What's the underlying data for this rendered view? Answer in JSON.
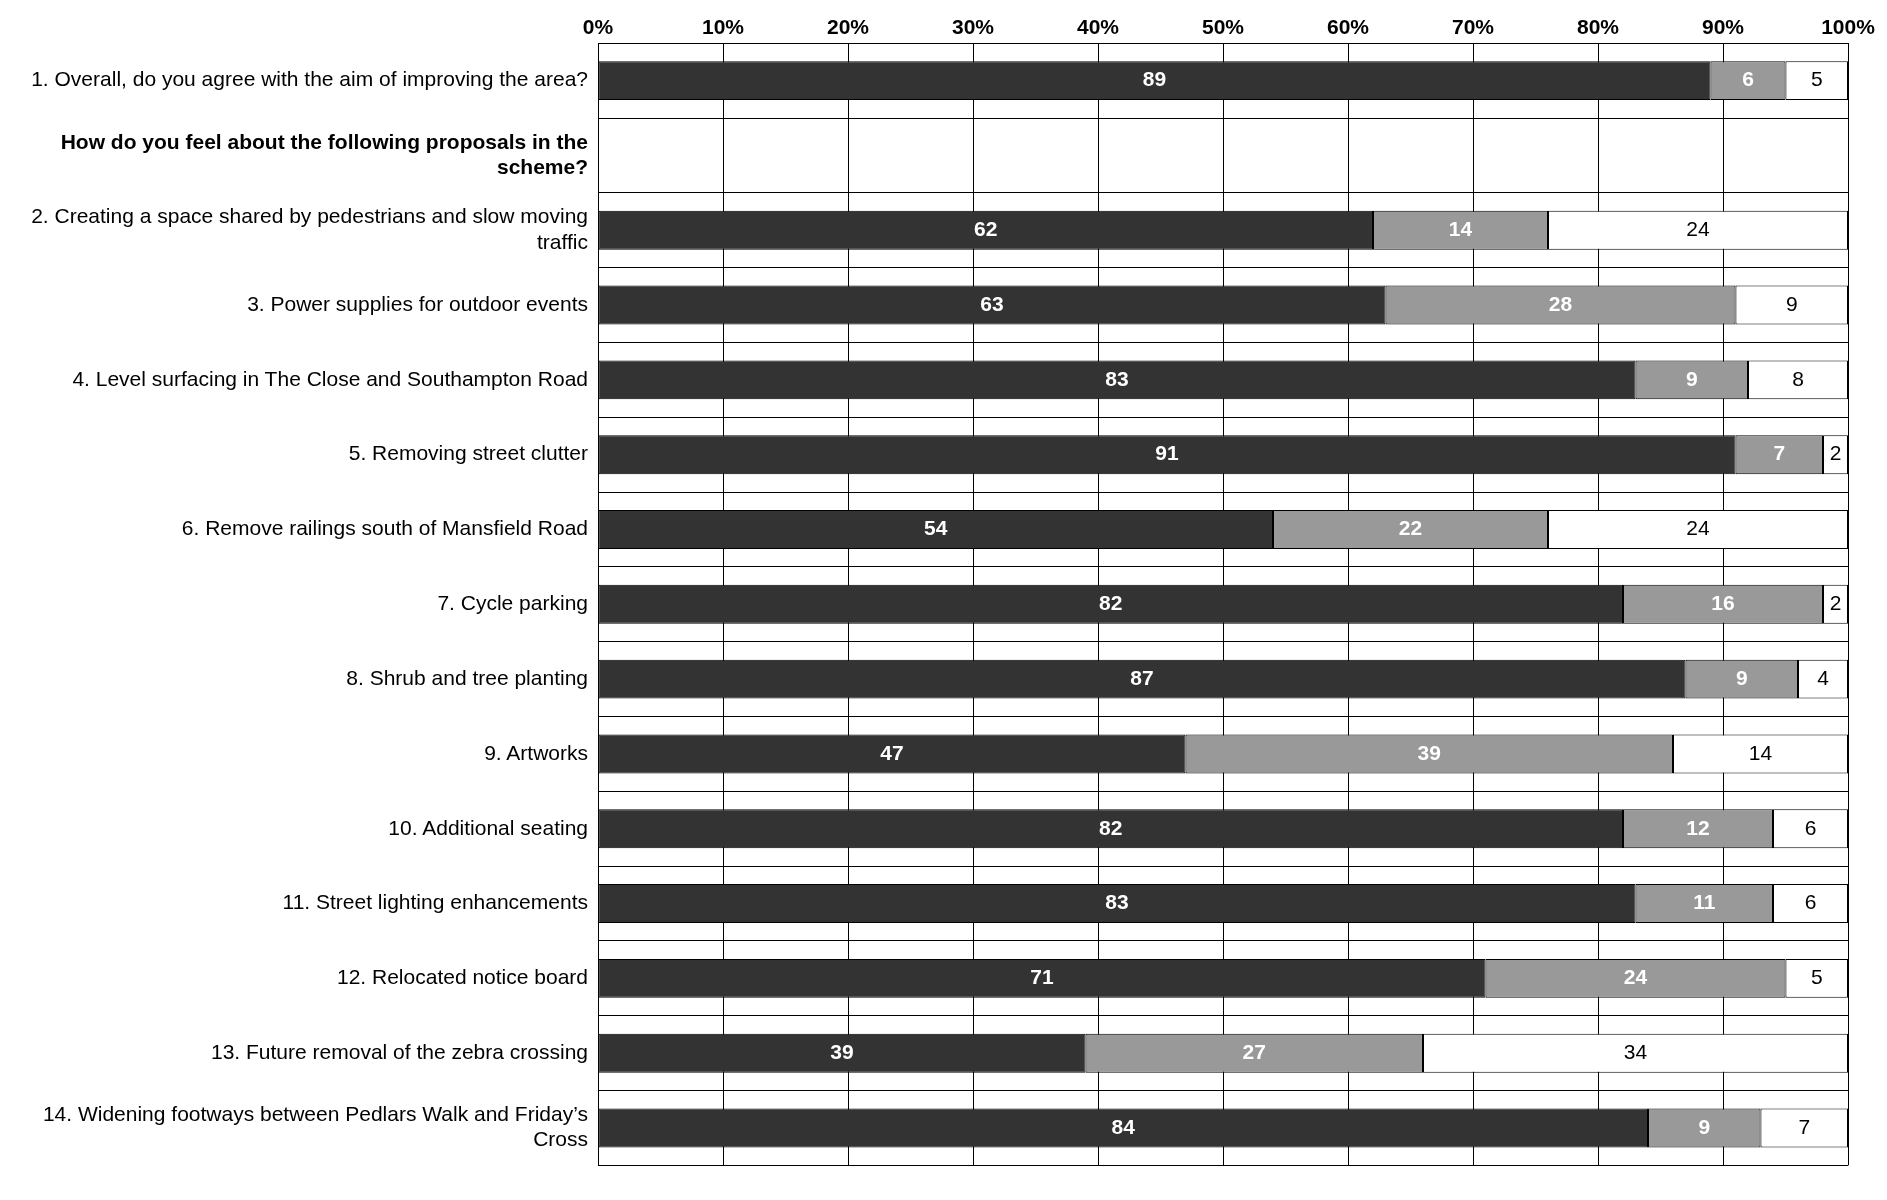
{
  "chart_data": {
    "type": "bar",
    "orientation": "horizontal",
    "stacked": true,
    "categories": [
      "1. Overall, do you agree with the aim of improving the area?",
      "How do you feel about the following proposals in the scheme?",
      "2. Creating a space shared by pedestrians and slow moving traffic",
      "3. Power supplies for outdoor events",
      "4. Level surfacing in The Close and Southampton Road",
      "5. Removing street clutter",
      "6. Remove railings south of Mansfield Road",
      "7. Cycle parking",
      "8. Shrub and tree planting",
      "9. Artworks",
      "10. Additional seating",
      "11. Street lighting enhancements",
      "12. Relocated notice board",
      "13. Future removal of the zebra crossing",
      "14. Widening footways between Pedlars Walk and Friday’s Cross"
    ],
    "series": [
      {
        "color": "#333333",
        "values": [
          89,
          null,
          62,
          63,
          83,
          91,
          54,
          82,
          87,
          47,
          82,
          83,
          71,
          39,
          84
        ]
      },
      {
        "color": "#999999",
        "values": [
          6,
          null,
          14,
          28,
          9,
          7,
          22,
          16,
          9,
          39,
          12,
          11,
          24,
          27,
          9
        ]
      },
      {
        "color": "#ffffff",
        "values": [
          5,
          null,
          24,
          9,
          8,
          2,
          24,
          2,
          4,
          14,
          6,
          6,
          5,
          34,
          7
        ]
      }
    ],
    "xlim": [
      0,
      100
    ],
    "xticks": [
      {
        "value": 0,
        "label": "0%"
      },
      {
        "value": 10,
        "label": "10%"
      },
      {
        "value": 20,
        "label": "20%"
      },
      {
        "value": 30,
        "label": "30%"
      },
      {
        "value": 40,
        "label": "40%"
      },
      {
        "value": 50,
        "label": "50%"
      },
      {
        "value": 60,
        "label": "60%"
      },
      {
        "value": 70,
        "label": "70%"
      },
      {
        "value": 80,
        "label": "80%"
      },
      {
        "value": 90,
        "label": "90%"
      },
      {
        "value": 100,
        "label": "100%"
      }
    ],
    "grid": true,
    "data_labels": true
  }
}
